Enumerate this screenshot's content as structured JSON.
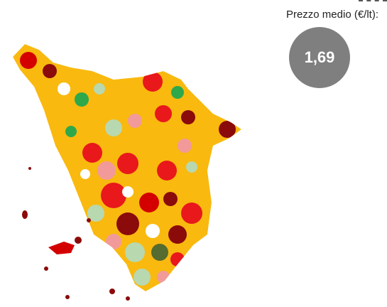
{
  "summary": {
    "label": "Prezzo medio (€/lt):",
    "value": "1,69"
  }
}
